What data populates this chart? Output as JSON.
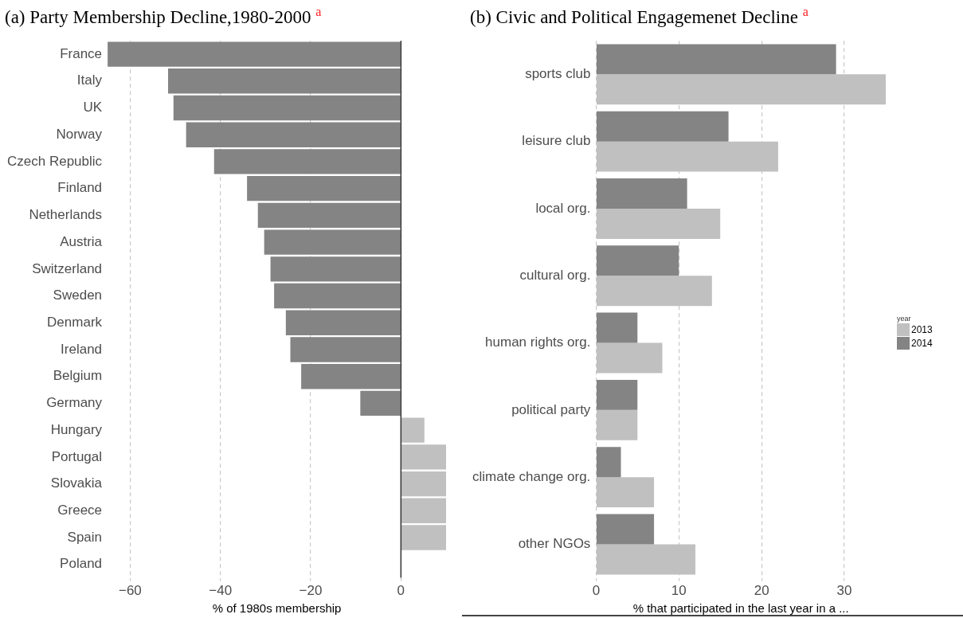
{
  "chart_data": [
    {
      "type": "bar",
      "orientation": "horizontal",
      "title": "(a) Party Membership Decline,1980-2000 $^{a}$",
      "xlabel": "% of 1980s membership",
      "categories": [
        "France",
        "Italy",
        "UK",
        "Norway",
        "Czech Republic",
        "Finland",
        "Netherlands",
        "Austria",
        "Switzerland",
        "Sweden",
        "Denmark",
        "Ireland",
        "Belgium",
        "Germany",
        "Hungary",
        "Portugal",
        "Slovakia",
        "Greece",
        "Spain",
        "Poland"
      ],
      "values": [
        -65,
        -51.6,
        -50.4,
        -47.6,
        -41.4,
        -34.1,
        -31.7,
        -30.3,
        -28.9,
        -28.1,
        -25.5,
        -24.5,
        -22.1,
        -9,
        5.2,
        10,
        10,
        10,
        10,
        null
      ],
      "colors": [
        "#848484",
        "#848484",
        "#848484",
        "#848484",
        "#848484",
        "#848484",
        "#848484",
        "#848484",
        "#848484",
        "#848484",
        "#848484",
        "#848484",
        "#848484",
        "#848484",
        "#c0c0c0",
        "#c0c0c0",
        "#c0c0c0",
        "#c0c0c0",
        "#c0c0c0",
        "#c0c0c0"
      ],
      "xlim": [
        -65,
        10
      ],
      "xticks": [
        -60,
        -40,
        -20,
        0
      ],
      "grid": "x",
      "legend": false,
      "ref_lines": [
        {
          "axis": "x",
          "value": 0,
          "color": "#333333"
        }
      ]
    },
    {
      "type": "bar",
      "orientation": "horizontal",
      "title": "(b) Civic and Political Engagemenet Decline $^{a}$",
      "xlabel": "% that participated in the last year in a ...",
      "categories": [
        "sports club",
        "leisure club",
        "local org.",
        "cultural org.",
        "human rights org.",
        "political party",
        "climate change org.",
        "other NGOs"
      ],
      "series": [
        {
          "name": "2013",
          "color": "#c0c0c0",
          "values": [
            35,
            22,
            15,
            14,
            8,
            5,
            7,
            12
          ]
        },
        {
          "name": "2014",
          "color": "#848484",
          "values": [
            29,
            16,
            11,
            10,
            5,
            5,
            3,
            7
          ]
        }
      ],
      "xlim": [
        0,
        35
      ],
      "xticks": [
        0,
        10,
        20,
        30
      ],
      "grid": "x",
      "legend": "right",
      "legend_title": "year"
    }
  ]
}
